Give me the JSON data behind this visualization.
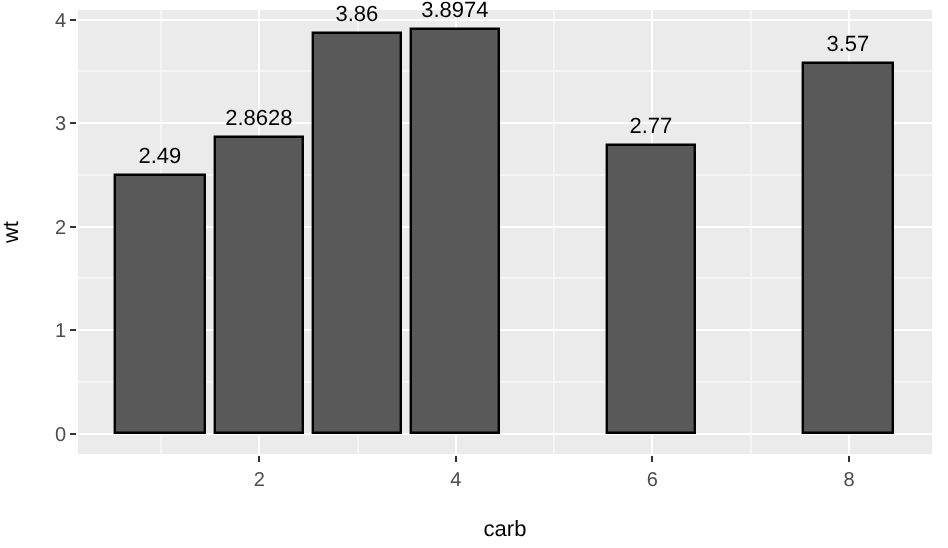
{
  "chart_data": {
    "type": "bar",
    "xlabel": "carb",
    "ylabel": "wt",
    "x": [
      1,
      2,
      3,
      4,
      6,
      8
    ],
    "values": [
      2.49,
      2.8628,
      3.86,
      3.8974,
      2.77,
      3.57
    ],
    "color": "#595959",
    "data_labels": true,
    "xlim": [
      0.155,
      8.845
    ],
    "xticks": [
      2,
      4,
      6,
      8
    ],
    "ylim": [
      -0.195,
      4.092
    ],
    "yticks": [
      0,
      1,
      2,
      3,
      4
    ],
    "grid": true
  }
}
